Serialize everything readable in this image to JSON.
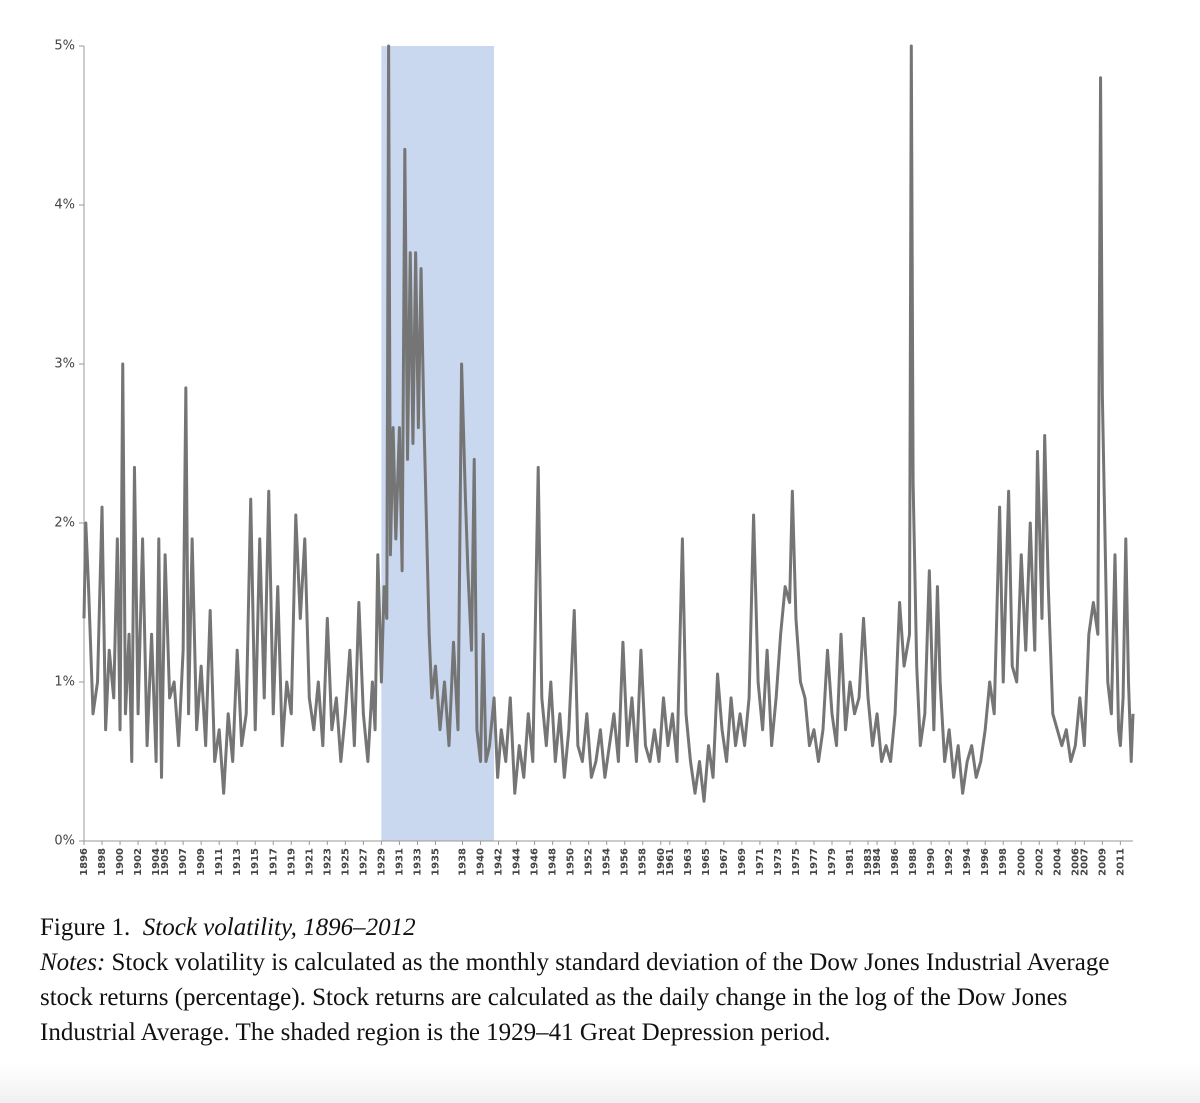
{
  "chart_data": {
    "type": "line",
    "caption_label": "Figure 1.",
    "title": "Stock volatility, 1896–2012",
    "notes_label": "Notes:",
    "notes": "Stock volatility is calculated as the monthly standard deviation of the Dow Jones Industrial Average stock returns (percentage). Stock returns are calculated as the daily change in the log of the Dow Jones Industrial Average. The shaded region is the 1929–41 Great Depression period.",
    "shaded_region": [
      1929,
      1941.5
    ],
    "shade_color": "#c9d8ee",
    "color": "#757575",
    "xlim": [
      1896,
      2012.4
    ],
    "ylim": [
      0,
      5
    ],
    "yticks": [
      {
        "value": 0,
        "label": "0%"
      },
      {
        "value": 1,
        "label": "1%"
      },
      {
        "value": 2,
        "label": "2%"
      },
      {
        "value": 3,
        "label": "3%"
      },
      {
        "value": 4,
        "label": "4%"
      },
      {
        "value": 5,
        "label": "5%"
      }
    ],
    "xticks": [
      1896,
      1898,
      1900,
      1902,
      1904,
      1905,
      1907,
      1909,
      1911,
      1913,
      1915,
      1917,
      1919,
      1921,
      1923,
      1925,
      1927,
      1929,
      1931,
      1933,
      1935,
      1938,
      1940,
      1942,
      1944,
      1946,
      1948,
      1950,
      1952,
      1954,
      1956,
      1958,
      1960,
      1961,
      1963,
      1965,
      1967,
      1969,
      1971,
      1973,
      1975,
      1977,
      1979,
      1981,
      1983,
      1984,
      1986,
      1988,
      1990,
      1992,
      1994,
      1996,
      1998,
      2000,
      2002,
      2004,
      2006,
      2007,
      2009,
      2011
    ],
    "x": [
      1896.0,
      1896.2,
      1896.5,
      1897.0,
      1897.5,
      1898.0,
      1898.4,
      1898.8,
      1899.3,
      1899.7,
      1900.0,
      1900.3,
      1900.6,
      1901.0,
      1901.3,
      1901.6,
      1902.0,
      1902.5,
      1903.0,
      1903.5,
      1904.0,
      1904.3,
      1904.6,
      1905.0,
      1905.5,
      1906.0,
      1906.5,
      1907.0,
      1907.3,
      1907.6,
      1908.0,
      1908.5,
      1909.0,
      1909.5,
      1910.0,
      1910.5,
      1911.0,
      1911.5,
      1912.0,
      1912.5,
      1913.0,
      1913.5,
      1914.0,
      1914.5,
      1915.0,
      1915.5,
      1916.0,
      1916.5,
      1917.0,
      1917.5,
      1918.0,
      1918.5,
      1919.0,
      1919.5,
      1920.0,
      1920.5,
      1921.0,
      1921.5,
      1922.0,
      1922.5,
      1923.0,
      1923.5,
      1924.0,
      1924.5,
      1925.0,
      1925.5,
      1926.0,
      1926.5,
      1927.0,
      1927.5,
      1928.0,
      1928.3,
      1928.6,
      1929.0,
      1929.3,
      1929.6,
      1929.8,
      1930.0,
      1930.3,
      1930.6,
      1931.0,
      1931.3,
      1931.6,
      1931.9,
      1932.2,
      1932.5,
      1932.8,
      1933.1,
      1933.4,
      1933.7,
      1934.0,
      1934.3,
      1934.6,
      1935.0,
      1935.5,
      1936.0,
      1936.5,
      1937.0,
      1937.5,
      1937.9,
      1938.3,
      1938.6,
      1939.0,
      1939.3,
      1939.6,
      1940.0,
      1940.3,
      1940.6,
      1941.0,
      1941.5,
      1941.9,
      1942.3,
      1942.8,
      1943.3,
      1943.8,
      1944.3,
      1944.8,
      1945.3,
      1945.8,
      1946.4,
      1946.8,
      1947.3,
      1947.8,
      1948.3,
      1948.8,
      1949.3,
      1949.8,
      1950.4,
      1950.8,
      1951.3,
      1951.8,
      1952.3,
      1952.8,
      1953.3,
      1953.8,
      1954.3,
      1954.8,
      1955.3,
      1955.8,
      1956.3,
      1956.8,
      1957.3,
      1957.8,
      1958.3,
      1958.8,
      1959.3,
      1959.8,
      1960.3,
      1960.8,
      1961.3,
      1961.8,
      1962.4,
      1962.8,
      1963.3,
      1963.8,
      1964.3,
      1964.8,
      1965.3,
      1965.8,
      1966.3,
      1966.8,
      1967.3,
      1967.8,
      1968.3,
      1968.8,
      1969.3,
      1969.8,
      1970.3,
      1970.8,
      1971.3,
      1971.8,
      1972.3,
      1972.8,
      1973.3,
      1973.8,
      1974.3,
      1974.6,
      1975.0,
      1975.5,
      1976.0,
      1976.5,
      1977.0,
      1977.5,
      1978.0,
      1978.5,
      1979.0,
      1979.5,
      1980.0,
      1980.5,
      1981.0,
      1981.5,
      1982.0,
      1982.5,
      1983.0,
      1983.5,
      1984.0,
      1984.5,
      1985.0,
      1985.5,
      1986.0,
      1986.5,
      1987.0,
      1987.6,
      1987.8,
      1988.0,
      1988.4,
      1988.8,
      1989.3,
      1989.8,
      1990.3,
      1990.7,
      1991.0,
      1991.5,
      1992.0,
      1992.5,
      1993.0,
      1993.5,
      1994.0,
      1994.5,
      1995.0,
      1995.5,
      1996.0,
      1996.5,
      1997.0,
      1997.6,
      1998.0,
      1998.6,
      1999.0,
      1999.5,
      2000.0,
      2000.5,
      2001.0,
      2001.5,
      2001.8,
      2002.3,
      2002.6,
      2003.0,
      2003.5,
      2004.0,
      2004.5,
      2005.0,
      2005.5,
      2006.0,
      2006.5,
      2007.0,
      2007.5,
      2008.0,
      2008.5,
      2008.8,
      2009.0,
      2009.3,
      2009.6,
      2010.0,
      2010.4,
      2010.8,
      2011.0,
      2011.3,
      2011.6,
      2011.9,
      2012.2,
      2012.4
    ],
    "values": [
      1.4,
      2.0,
      1.6,
      0.8,
      1.0,
      2.1,
      0.7,
      1.2,
      0.9,
      1.9,
      0.7,
      3.0,
      0.8,
      1.3,
      0.5,
      2.35,
      0.8,
      1.9,
      0.6,
      1.3,
      0.5,
      1.9,
      0.4,
      1.8,
      0.9,
      1.0,
      0.6,
      1.2,
      2.85,
      0.8,
      1.9,
      0.7,
      1.1,
      0.6,
      1.45,
      0.5,
      0.7,
      0.3,
      0.8,
      0.5,
      1.2,
      0.6,
      0.8,
      2.15,
      0.7,
      1.9,
      0.9,
      2.2,
      0.8,
      1.6,
      0.6,
      1.0,
      0.8,
      2.05,
      1.4,
      1.9,
      0.9,
      0.7,
      1.0,
      0.6,
      1.4,
      0.7,
      0.9,
      0.5,
      0.8,
      1.2,
      0.6,
      1.5,
      0.8,
      0.5,
      1.0,
      0.7,
      1.8,
      1.0,
      1.6,
      1.4,
      5.0,
      1.8,
      2.6,
      1.9,
      2.6,
      1.7,
      4.35,
      2.4,
      3.7,
      2.5,
      3.7,
      2.6,
      3.6,
      2.7,
      2.0,
      1.3,
      0.9,
      1.1,
      0.7,
      1.0,
      0.6,
      1.25,
      0.7,
      3.0,
      2.2,
      1.7,
      1.2,
      2.4,
      0.7,
      0.5,
      1.3,
      0.5,
      0.6,
      0.9,
      0.4,
      0.7,
      0.5,
      0.9,
      0.3,
      0.6,
      0.4,
      0.8,
      0.5,
      2.35,
      0.9,
      0.6,
      1.0,
      0.5,
      0.8,
      0.4,
      0.7,
      1.45,
      0.6,
      0.5,
      0.8,
      0.4,
      0.5,
      0.7,
      0.4,
      0.6,
      0.8,
      0.5,
      1.25,
      0.6,
      0.9,
      0.5,
      1.2,
      0.6,
      0.5,
      0.7,
      0.5,
      0.9,
      0.6,
      0.8,
      0.5,
      1.9,
      0.8,
      0.5,
      0.3,
      0.5,
      0.25,
      0.6,
      0.4,
      1.05,
      0.7,
      0.5,
      0.9,
      0.6,
      0.8,
      0.6,
      0.9,
      2.05,
      1.0,
      0.7,
      1.2,
      0.6,
      0.9,
      1.3,
      1.6,
      1.5,
      2.2,
      1.4,
      1.0,
      0.9,
      0.6,
      0.7,
      0.5,
      0.7,
      1.2,
      0.8,
      0.6,
      1.3,
      0.7,
      1.0,
      0.8,
      0.9,
      1.4,
      0.9,
      0.6,
      0.8,
      0.5,
      0.6,
      0.5,
      0.8,
      1.5,
      1.1,
      1.3,
      5.0,
      2.25,
      1.1,
      0.6,
      0.8,
      1.7,
      0.7,
      1.6,
      1.0,
      0.5,
      0.7,
      0.4,
      0.6,
      0.3,
      0.5,
      0.6,
      0.4,
      0.5,
      0.7,
      1.0,
      0.8,
      2.1,
      1.0,
      2.2,
      1.1,
      1.0,
      1.8,
      1.2,
      2.0,
      1.2,
      2.45,
      1.4,
      2.55,
      1.6,
      0.8,
      0.7,
      0.6,
      0.7,
      0.5,
      0.6,
      0.9,
      0.6,
      1.3,
      1.5,
      1.3,
      4.8,
      2.8,
      1.9,
      1.0,
      0.8,
      1.8,
      0.7,
      0.6,
      0.9,
      1.9,
      1.0,
      0.5,
      0.8
    ]
  }
}
